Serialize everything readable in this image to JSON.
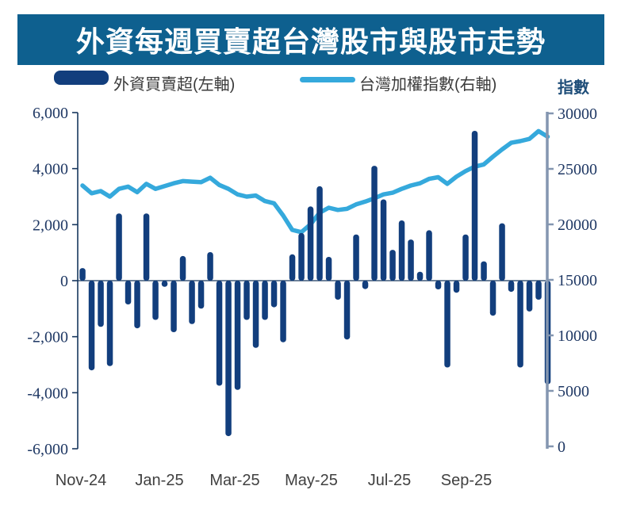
{
  "title": "外資每週買賣超台灣股市與股市走勢",
  "legend": {
    "bars": "外資買賣超(左軸)",
    "line": "台灣加權指數(右軸)"
  },
  "right_axis_unit": "指數",
  "colors": {
    "banner_bg": "#0E608F",
    "bar": "#123E7D",
    "line": "#35A9DC",
    "axis_text": "#1F3864",
    "left_axis_line": "#17375E",
    "right_axis_line": "#8496B0",
    "x_label_text": "#404040",
    "unit_text": "#1F4E79"
  },
  "chart_data": {
    "type": "bar",
    "subtype": "combo-bar-line",
    "title": "外資每週買賣超台灣股市與股市走勢",
    "x_description": "weekly, Nov-2024 to Oct-2025",
    "x_tick_labels": [
      "Nov-24",
      "Jan-25",
      "Mar-25",
      "May-25",
      "Jul-25",
      "Sep-25"
    ],
    "left_axis": {
      "min": -6000,
      "max": 6000,
      "step": 2000,
      "tick_values": [
        6000,
        4000,
        2000,
        0,
        -2000,
        -4000,
        -6000
      ],
      "tick_labels": [
        "6,000",
        "4,000",
        "2,000",
        "0",
        "-2,000",
        "-4,000",
        "-6,000"
      ]
    },
    "right_axis": {
      "min": 0,
      "max": 30000,
      "step": 5000,
      "tick_values": [
        30000,
        25000,
        20000,
        15000,
        10000,
        5000,
        0
      ],
      "tick_labels": [
        "30000",
        "25000",
        "20000",
        "15000",
        "10000",
        "5000",
        "0"
      ],
      "unit": "指數"
    },
    "grid": "zero-line-only",
    "legend_position": "top",
    "series": [
      {
        "name": "外資買賣超(左軸)",
        "type": "bar",
        "axis": "left",
        "values": [
          450,
          -3200,
          -1650,
          -3050,
          2400,
          -850,
          -1700,
          2400,
          -1400,
          -220,
          -1840,
          880,
          -1550,
          -1000,
          1020,
          -3750,
          -5550,
          -3900,
          -1400,
          -2400,
          -1400,
          -950,
          -2200,
          940,
          1700,
          2650,
          3370,
          850,
          -680,
          -2100,
          1650,
          -300,
          4100,
          2900,
          1100,
          2150,
          1470,
          320,
          1800,
          -310,
          -3100,
          -430,
          1650,
          5350,
          690,
          -1250,
          2050,
          -400,
          -3100,
          -1100,
          -680,
          -3700
        ]
      },
      {
        "name": "台灣加權指數(右軸)",
        "type": "line",
        "axis": "right",
        "values": [
          23500,
          22800,
          23000,
          22500,
          23200,
          23400,
          22900,
          23650,
          23200,
          23450,
          23700,
          23900,
          23850,
          23800,
          24200,
          23550,
          23200,
          22700,
          22500,
          22600,
          22100,
          21900,
          20800,
          19500,
          19300,
          20000,
          21050,
          21500,
          21300,
          21400,
          21800,
          22050,
          22350,
          22700,
          22850,
          23200,
          23500,
          23700,
          24100,
          24250,
          23650,
          24300,
          24800,
          25200,
          25400,
          26100,
          26750,
          27350,
          27500,
          27700,
          28400,
          27900
        ]
      }
    ]
  }
}
